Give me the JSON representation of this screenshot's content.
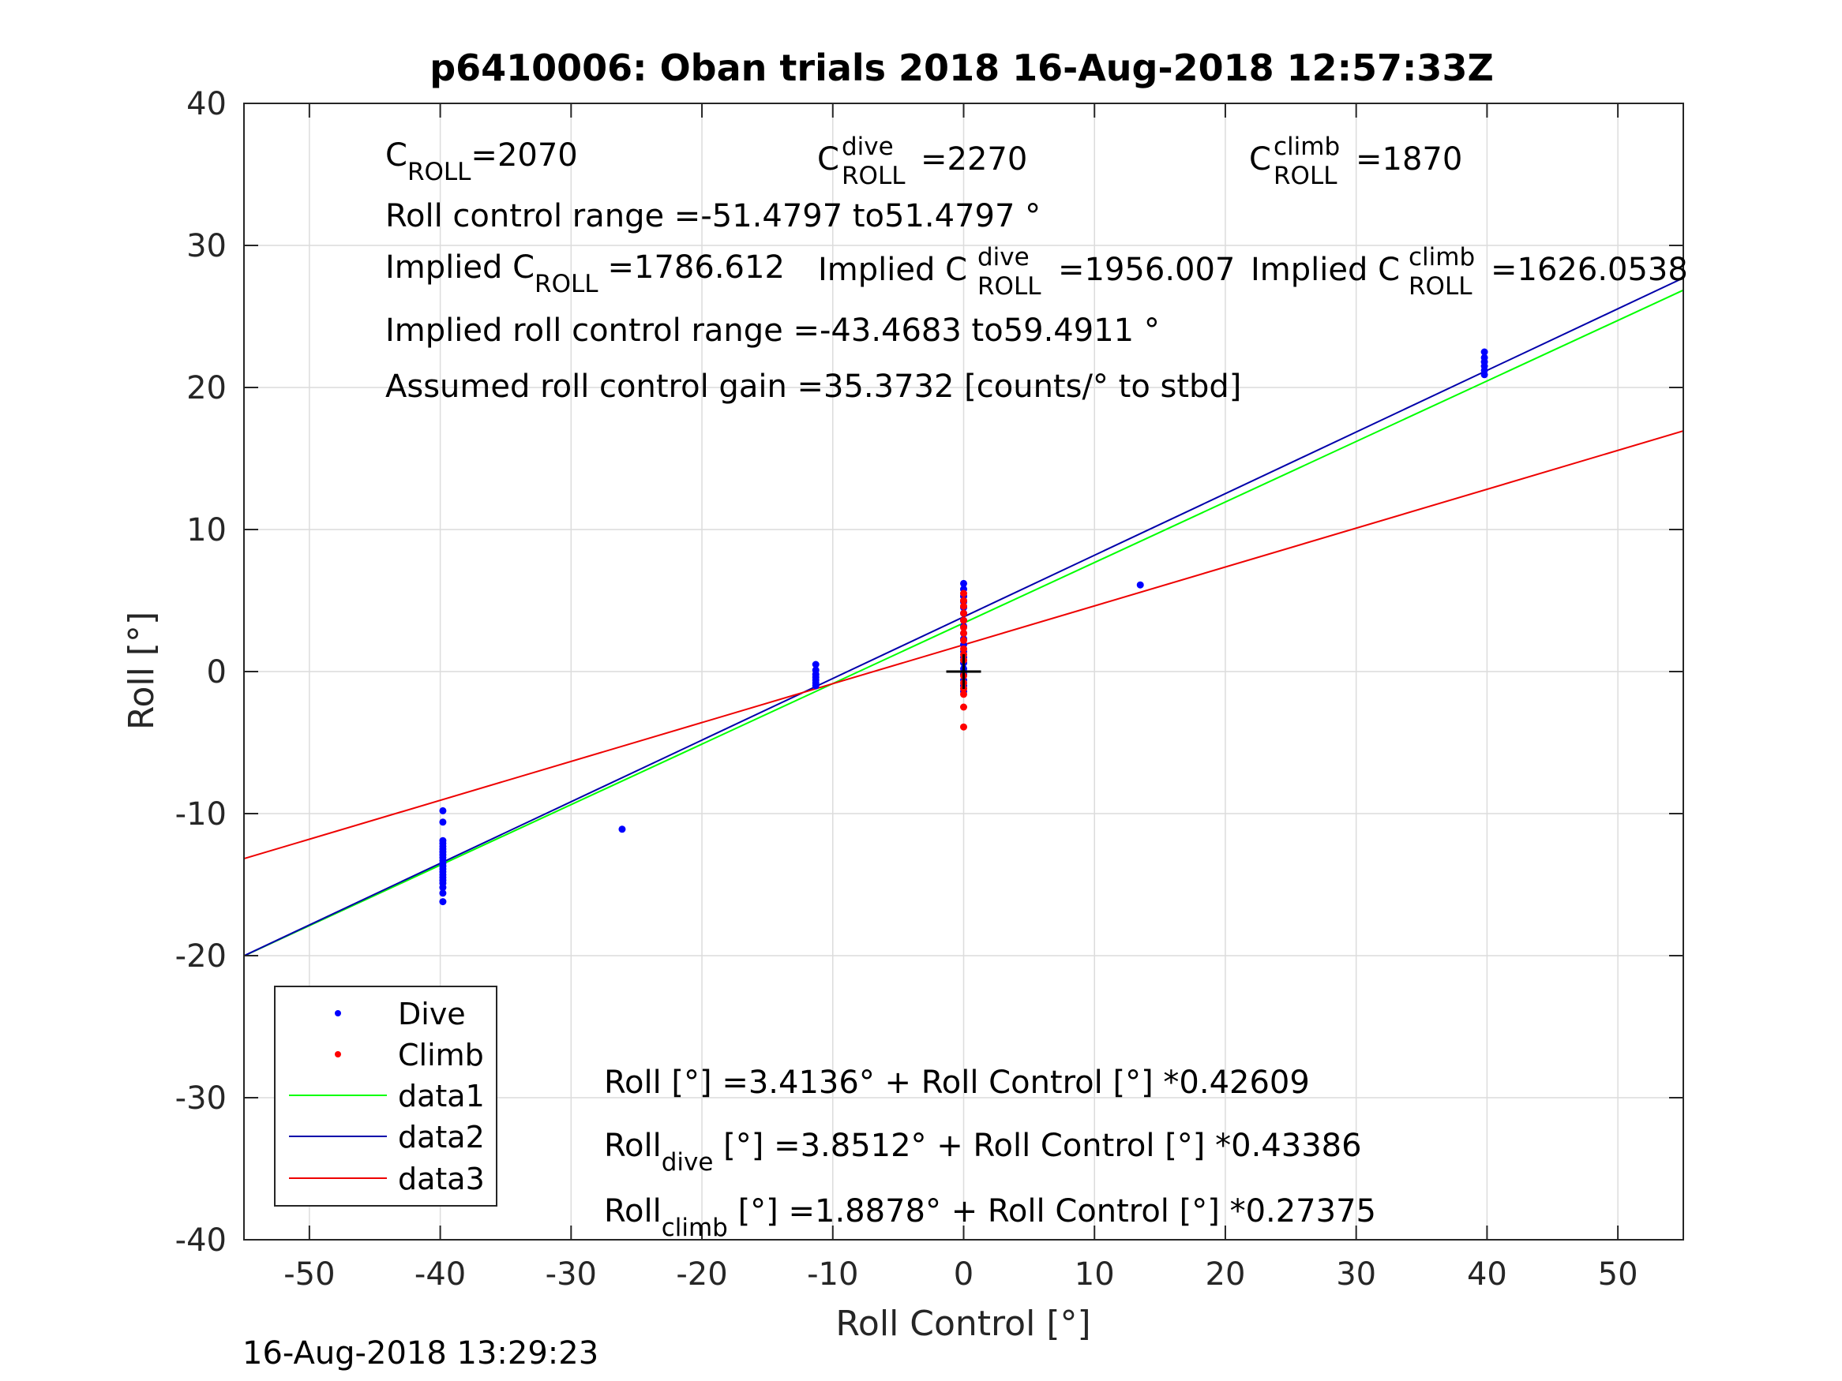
{
  "chart_data": {
    "type": "scatter",
    "title": "p6410006: Oban trials 2018 16-Aug-2018 12:57:33Z",
    "xlabel": "Roll Control [°]",
    "ylabel": "Roll [°]",
    "xlim": [
      -55,
      55
    ],
    "ylim": [
      -40,
      40
    ],
    "xticks": [
      -50,
      -40,
      -30,
      -20,
      -10,
      0,
      10,
      20,
      30,
      40,
      50
    ],
    "yticks": [
      -40,
      -30,
      -20,
      -10,
      0,
      10,
      20,
      30,
      40
    ],
    "grid": true,
    "legend_position": "bottom-left",
    "timestamp": "16-Aug-2018 13:29:23",
    "colors": {
      "dive": "#0000ff",
      "climb": "#ff0000",
      "data1": "#00ff00",
      "data2": "#0000aa",
      "data3": "#ee0000",
      "marker": "#000000"
    },
    "series": [
      {
        "name": "Dive",
        "kind": "points",
        "color": "#0000ff",
        "points": [
          [
            -39.8,
            -9.8
          ],
          [
            -39.8,
            -10.6
          ],
          [
            -39.8,
            -11.9
          ],
          [
            -39.8,
            -12.1
          ],
          [
            -39.8,
            -12.3
          ],
          [
            -39.8,
            -12.5
          ],
          [
            -39.8,
            -12.7
          ],
          [
            -39.8,
            -12.9
          ],
          [
            -39.8,
            -13.1
          ],
          [
            -39.8,
            -13.3
          ],
          [
            -39.8,
            -13.5
          ],
          [
            -39.8,
            -13.7
          ],
          [
            -39.8,
            -13.9
          ],
          [
            -39.8,
            -14.1
          ],
          [
            -39.8,
            -14.3
          ],
          [
            -39.8,
            -14.5
          ],
          [
            -39.8,
            -14.7
          ],
          [
            -39.8,
            -14.9
          ],
          [
            -39.8,
            -15.2
          ],
          [
            -39.8,
            -15.6
          ],
          [
            -39.8,
            -16.2
          ],
          [
            -26.1,
            -11.1
          ],
          [
            -11.3,
            0.5
          ],
          [
            -11.3,
            0.1
          ],
          [
            -11.3,
            -0.2
          ],
          [
            -11.3,
            -0.4
          ],
          [
            -11.3,
            -0.6
          ],
          [
            -11.3,
            -0.8
          ],
          [
            -11.3,
            -1.0
          ],
          [
            0,
            6.2
          ],
          [
            0,
            5.8
          ],
          [
            0,
            5.3
          ],
          [
            0,
            4.9
          ],
          [
            0,
            4.5
          ],
          [
            0,
            4.1
          ],
          [
            0,
            3.6
          ],
          [
            0,
            3.2
          ],
          [
            0,
            2.7
          ],
          [
            0,
            2.3
          ],
          [
            0,
            1.9
          ],
          [
            0,
            1.4
          ],
          [
            0,
            1.0
          ],
          [
            0,
            0.6
          ],
          [
            0,
            0.2
          ],
          [
            0,
            -0.2
          ],
          [
            0,
            -0.6
          ],
          [
            0,
            -1.0
          ],
          [
            0,
            -1.4
          ],
          [
            13.5,
            6.1
          ],
          [
            39.8,
            22.5
          ],
          [
            39.8,
            22.1
          ],
          [
            39.8,
            21.8
          ],
          [
            39.8,
            21.5
          ],
          [
            39.8,
            21.2
          ],
          [
            39.8,
            20.9
          ]
        ]
      },
      {
        "name": "Climb",
        "kind": "points",
        "color": "#ff0000",
        "points": [
          [
            0,
            5.5
          ],
          [
            0,
            5.0
          ],
          [
            0,
            4.6
          ],
          [
            0,
            4.1
          ],
          [
            0,
            3.6
          ],
          [
            0,
            3.1
          ],
          [
            0,
            2.7
          ],
          [
            0,
            2.2
          ],
          [
            0,
            1.6
          ],
          [
            0,
            1.2
          ],
          [
            0,
            0.8
          ],
          [
            0,
            -0.3
          ],
          [
            0,
            -0.8
          ],
          [
            0,
            -1.2
          ],
          [
            0,
            -1.6
          ],
          [
            0,
            -2.5
          ],
          [
            0,
            -3.9
          ]
        ]
      },
      {
        "name": "data1",
        "kind": "line",
        "color": "#00ff00",
        "x": [
          -55,
          55
        ],
        "y": [
          -20.02,
          26.85
        ]
      },
      {
        "name": "data2",
        "kind": "line",
        "color": "#0000aa",
        "x": [
          -55,
          55
        ],
        "y": [
          -20.01,
          27.71
        ]
      },
      {
        "name": "data3",
        "kind": "line",
        "color": "#ee0000",
        "x": [
          -55,
          55
        ],
        "y": [
          -13.17,
          16.94
        ]
      }
    ],
    "crosshair": {
      "x": 0,
      "y": 0
    },
    "annotations": {
      "c_roll": {
        "base": "C",
        "sub": "ROLL",
        "value": "=2070"
      },
      "c_roll_dive": {
        "base": "C",
        "sup": "dive",
        "sub": "ROLL",
        "value": "=2270"
      },
      "c_roll_climb": {
        "base": "C",
        "sup": "climb",
        "sub": "ROLL",
        "value": "=1870"
      },
      "roll_range": "Roll control range =-51.4797 to51.4797 °",
      "implied_label": "Implied C",
      "implied_c_roll": {
        "sub": "ROLL",
        "value": "=1786.612"
      },
      "implied_c_roll_dive": {
        "sup": "dive",
        "sub": "ROLL",
        "value": "=1956.007"
      },
      "implied_c_roll_climb": {
        "sup": "climb",
        "sub": "ROLL",
        "value": "=1626.0538"
      },
      "implied_range": "Implied roll control range =-43.4683 to59.4911 °",
      "gain": "Assumed roll control gain =35.3732 [counts/° to stbd]",
      "fit_all": "Roll [°] =3.4136° + Roll Control [°] *0.42609",
      "fit_dive": {
        "base": "Roll",
        "sub": "dive",
        "rest": " [°] =3.8512° + Roll Control [°] *0.43386"
      },
      "fit_climb": {
        "base": "Roll",
        "sub": "climb",
        "rest": " [°] =1.8878° + Roll Control [°] *0.27375"
      }
    }
  }
}
